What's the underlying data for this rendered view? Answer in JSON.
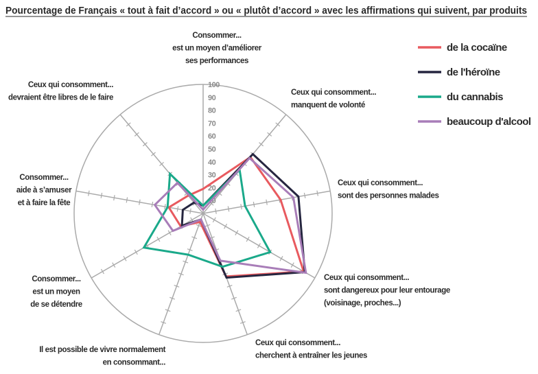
{
  "chart_data": {
    "type": "radar",
    "title": "Pourcentage de Français « tout à fait d’accord » ou « plutôt d’accord » avec les affirmations qui suivent, par produits",
    "axes": [
      {
        "lines": [
          "Consommer...",
          "est un moyen d’améliorer",
          "ses performances"
        ]
      },
      {
        "lines": [
          "Ceux qui consomment...",
          "manquent de volonté"
        ]
      },
      {
        "lines": [
          "Ceux qui consomment...",
          "sont des personnes malades"
        ]
      },
      {
        "lines": [
          "Ceux qui consomment...",
          "sont dangereux pour leur entourage",
          "(voisinage, proches...)"
        ]
      },
      {
        "lines": [
          "Ceux qui consomment...",
          "cherchent à entraîner les jeunes"
        ]
      },
      {
        "lines": [
          "Il est possible de vivre normalement",
          "en consommant..."
        ]
      },
      {
        "lines": [
          "Consommer...",
          "est un moyen",
          "de se détendre"
        ]
      },
      {
        "lines": [
          "Consommer...",
          "aide à s’amuser",
          "et à faire la fête"
        ]
      },
      {
        "lines": [
          "Ceux qui consomment...",
          "devraient être libres de le faire"
        ]
      }
    ],
    "rlim": [
      0,
      100
    ],
    "rticks": [
      "10",
      "20",
      "30",
      "40",
      "50",
      "60",
      "70",
      "80",
      "90",
      "100"
    ],
    "legend_position": "top-right",
    "series": [
      {
        "name": "de la cocaïne",
        "color": "#e85a5f",
        "values": [
          19,
          57,
          61,
          90,
          52,
          7,
          20,
          27,
          18
        ]
      },
      {
        "name": "de l'héroïne",
        "color": "#262640",
        "values": [
          6,
          60,
          75,
          91,
          53,
          5,
          19,
          16,
          11
        ]
      },
      {
        "name": "du cannabis",
        "color": "#1aa98a",
        "values": [
          6,
          44,
          33,
          60,
          44,
          34,
          53,
          28,
          40
        ]
      },
      {
        "name": "beaucoup d'alcool",
        "color": "#a87db8",
        "values": [
          3,
          56,
          71,
          92,
          39,
          5,
          27,
          38,
          31
        ]
      }
    ]
  }
}
